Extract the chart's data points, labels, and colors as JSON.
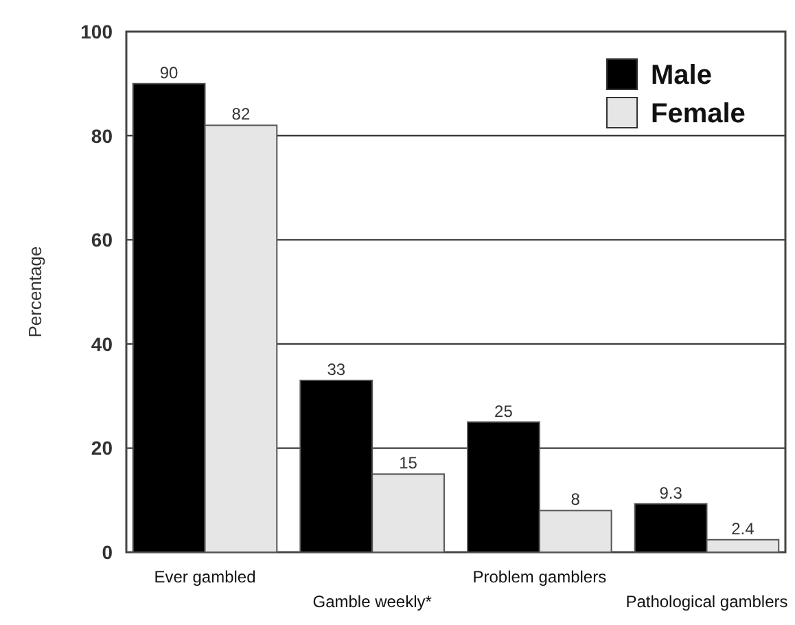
{
  "chart_data": {
    "type": "bar",
    "ylabel": "Percentage",
    "categories": [
      "Ever gambled",
      "Gamble weekly*",
      "Problem gamblers",
      "Pathological gamblers"
    ],
    "series": [
      {
        "name": "Male",
        "color": "#000000",
        "values": [
          90,
          33,
          25,
          9.3
        ]
      },
      {
        "name": "Female",
        "color": "#e6e6e6",
        "values": [
          82,
          15,
          8,
          2.4
        ]
      }
    ],
    "ylim": [
      0,
      100
    ],
    "yticks": [
      0,
      20,
      40,
      60,
      80,
      100
    ],
    "grid": "y",
    "legend": "top right",
    "data_labels": true
  }
}
